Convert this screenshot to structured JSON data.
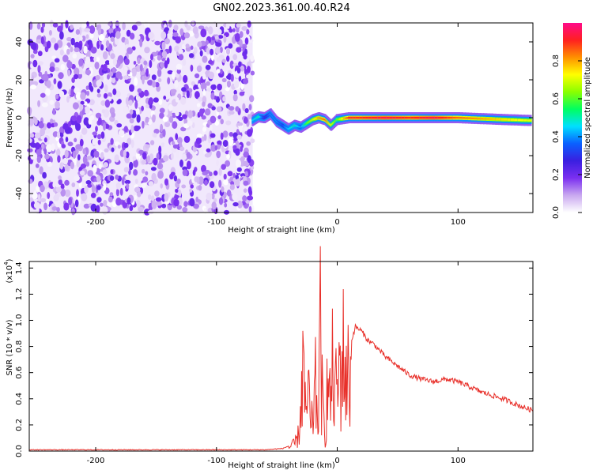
{
  "title": "GN02.2023.361.00.40.R24",
  "chart_data": [
    {
      "type": "heatmap",
      "xlabel": "Height of straight line (km)",
      "ylabel": "Frequency (Hz)",
      "xlim": [
        -255,
        162
      ],
      "ylim": [
        -50,
        50
      ],
      "xticks": [
        -200,
        -100,
        0,
        100
      ],
      "yticks": [
        -40,
        -20,
        0,
        20,
        40
      ],
      "xtick_labels": [
        "-200",
        "-100",
        "0",
        "100"
      ],
      "ytick_labels": [
        "-40",
        "-20",
        "0",
        "20",
        "40"
      ],
      "colorbar": {
        "label": "Normalized spectral amplitude",
        "range": [
          0,
          1
        ],
        "ticks": [
          0.0,
          0.2,
          0.4,
          0.6,
          0.8
        ],
        "tick_labels": [
          "0.0",
          "0.2",
          "0.4",
          "0.6",
          "0.8"
        ],
        "colormap": [
          "#ffffff",
          "#c9a8f0",
          "#7b2ff0",
          "#3a1fe0",
          "#0a60ff",
          "#00e0ff",
          "#00ff60",
          "#8aff00",
          "#ffff00",
          "#ff9000",
          "#ff2020",
          "#ff0a8a"
        ]
      },
      "noise_region": {
        "x_range": [
          -255,
          -70
        ],
        "freq_range": [
          -50,
          50
        ],
        "amplitude_range": [
          0.0,
          0.2
        ]
      },
      "signal_track": {
        "x": [
          -70,
          -65,
          -60,
          -55,
          -50,
          -45,
          -40,
          -35,
          -30,
          -25,
          -20,
          -15,
          -10,
          -5,
          0,
          10,
          20,
          40,
          60,
          80,
          100,
          120,
          140,
          162
        ],
        "freq": [
          -1.5,
          0.5,
          0.0,
          2.0,
          -2.0,
          -4.0,
          -6.0,
          -4.0,
          -5.0,
          -3.0,
          -1.0,
          0.0,
          -1.0,
          -4.0,
          -1.0,
          0.0,
          0.0,
          0.0,
          0.0,
          0.0,
          0.0,
          -0.5,
          -1.0,
          -1.5
        ],
        "amplitude": [
          0.45,
          0.5,
          0.3,
          0.4,
          0.4,
          0.35,
          0.45,
          0.5,
          0.4,
          0.6,
          0.7,
          0.8,
          0.85,
          0.7,
          0.6,
          0.9,
          0.9,
          0.95,
          0.9,
          0.95,
          0.85,
          0.8,
          0.75,
          0.7
        ]
      }
    },
    {
      "type": "line",
      "xlabel": "Height of straight line (km)",
      "ylabel": "SNR (10 * v/v)",
      "y_multiplier_label": "(x10",
      "y_multiplier_exp": "4",
      "y_multiplier_close": ")",
      "xlim": [
        -255,
        162
      ],
      "ylim": [
        0,
        1.45
      ],
      "xticks": [
        -200,
        -100,
        0,
        100
      ],
      "yticks": [
        0.0,
        0.2,
        0.4,
        0.6,
        0.8,
        1.0,
        1.2,
        1.4
      ],
      "xtick_labels": [
        "-200",
        "-100",
        "0",
        "100"
      ],
      "ytick_labels": [
        "0.0",
        "0.2",
        "0.4",
        "0.6",
        "0.8",
        "1.0",
        "1.2",
        "1.4"
      ],
      "color": "#e8302a",
      "series": [
        {
          "x": [
            -255,
            -150,
            -60,
            -45,
            -40,
            -35,
            -32,
            -30,
            -28,
            -26,
            -24,
            -22,
            -20,
            -18,
            -16,
            -14,
            -12,
            -10,
            -8,
            -6,
            -4,
            -2,
            0,
            2,
            5,
            8,
            10,
            12,
            15,
            20,
            25,
            30,
            40,
            50,
            60,
            70,
            80,
            90,
            100,
            110,
            120,
            130,
            140,
            150,
            162
          ],
          "y": [
            0.01,
            0.01,
            0.01,
            0.02,
            0.04,
            0.1,
            0.2,
            0.6,
            1.13,
            0.3,
            0.9,
            0.2,
            0.5,
            0.8,
            0.4,
            1.45,
            0.5,
            0.2,
            0.9,
            0.6,
            1.0,
            0.7,
            0.8,
            1.0,
            1.2,
            0.9,
            1.0,
            0.85,
            0.95,
            0.92,
            0.85,
            0.82,
            0.72,
            0.65,
            0.58,
            0.55,
            0.53,
            0.55,
            0.53,
            0.49,
            0.45,
            0.42,
            0.39,
            0.35,
            0.31
          ]
        }
      ]
    }
  ]
}
